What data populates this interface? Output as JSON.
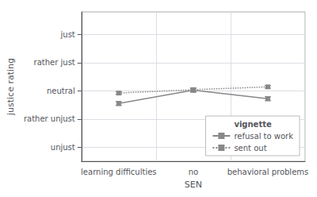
{
  "chart_data": {
    "type": "line",
    "xlabel": "SEN",
    "ylabel": "justice rating",
    "categories": [
      "learning difficulties",
      "no",
      "behavioral problems"
    ],
    "series": [
      {
        "name": "refusal to work",
        "color": "#888888",
        "line_style": "solid",
        "marker": "square",
        "values": [
          2.55,
          3.02,
          2.72
        ],
        "errors": [
          0.07,
          0.07,
          0.07
        ]
      },
      {
        "name": "sent out",
        "color": "#888888",
        "line_style": "dotted",
        "marker": "square",
        "values": [
          2.92,
          3.04,
          3.14
        ],
        "errors": [
          0.05,
          0.06,
          0.05
        ]
      }
    ],
    "ylim": [
      0.5,
      5.8
    ],
    "yticks": [
      {
        "value": 1,
        "label": "unjust"
      },
      {
        "value": 2,
        "label": "rather unjust"
      },
      {
        "value": 3,
        "label": "neutral"
      },
      {
        "value": 4,
        "label": "rather just"
      },
      {
        "value": 5,
        "label": "just"
      }
    ],
    "grid": true,
    "legend": "lower right",
    "legend_title": "vignette"
  }
}
